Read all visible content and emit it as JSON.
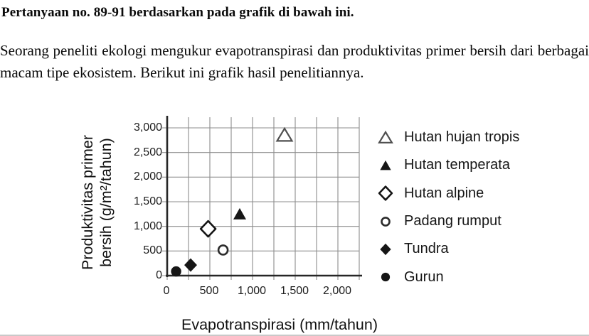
{
  "page": {
    "question_header": "Pertanyaan no. 89-91 berdasarkan pada grafik di bawah ini.",
    "intro_paragraph": "Seorang peneliti ekologi mengukur evapotranspirasi dan produktivitas primer bersih dari berbagai macam tipe ekosistem. Berikut ini grafik hasil penelitiannya."
  },
  "chart_data": {
    "type": "scatter",
    "title": "",
    "xlabel": "Evapotranspirasi (mm/tahun)",
    "ylabel": "Produktivitas primer bersih (g/m²/tahun)",
    "ylabel_lines": [
      "Produktivitas primer",
      "bersih (g/m²/tahun)"
    ],
    "xlim": [
      0,
      2250
    ],
    "ylim": [
      0,
      3200
    ],
    "grid": true,
    "x_grid_step": 250,
    "y_grid_step": 500,
    "legend_position": "right",
    "x_ticks": [
      0,
      500,
      1000,
      1500,
      2000
    ],
    "x_tick_labels": [
      "0",
      "500",
      "1,000",
      "1,500",
      "2,000"
    ],
    "y_ticks": [
      0,
      500,
      1000,
      1500,
      2000,
      2500,
      3000
    ],
    "y_tick_labels": [
      "0",
      "500",
      "1,000",
      "1,500",
      "2,000",
      "2,500",
      "3,000"
    ],
    "series": [
      {
        "name": "Hutan hujan tropis",
        "marker": "triangle-open",
        "x": 1375,
        "y": 2850
      },
      {
        "name": "Hutan temperata",
        "marker": "triangle-filled",
        "x": 850,
        "y": 1250
      },
      {
        "name": "Hutan alpine",
        "marker": "diamond-open",
        "x": 480,
        "y": 950
      },
      {
        "name": "Padang rumput",
        "marker": "circle-open",
        "x": 655,
        "y": 520
      },
      {
        "name": "Tundra",
        "marker": "diamond-filled",
        "x": 275,
        "y": 215
      },
      {
        "name": "Gurun",
        "marker": "circle-filled",
        "x": 105,
        "y": 85
      }
    ],
    "colors": {
      "marker_fill": "#161616",
      "open_marker_stroke": "#2c2c2c",
      "open_triangle_stroke": "#4f4f4f",
      "grid": "#8d8d8d",
      "axis": "#262626",
      "text": "#111111"
    }
  }
}
